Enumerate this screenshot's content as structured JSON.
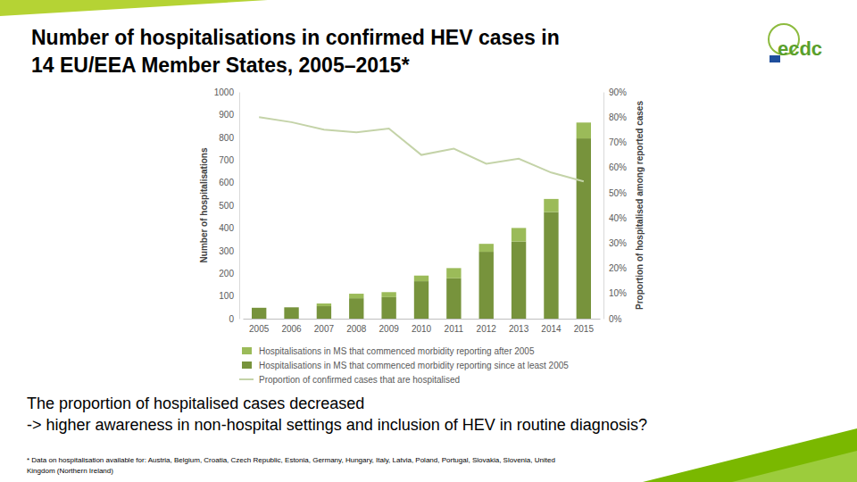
{
  "slide": {
    "title": [
      "Number of hospitalisations in confirmed HEV cases in",
      "14 EU/EEA Member States, 2005–2015*"
    ],
    "note": [
      "The proportion of hospitalised cases decreased",
      "-> higher awareness in non-hospital settings and inclusion of HEV in routine diagnosis?"
    ],
    "footnote": [
      "* Data on hospitalisation available for: Austria, Belgium, Croatia, Czech Republic, Estonia, Germany, Hungary, Italy, Latvia, Poland, Portugal, Slovakia, Slovenia, United",
      "Kingdom (Northern Ireland)"
    ],
    "logo": "ecdc"
  },
  "chart_data": {
    "type": "bar",
    "stacked": true,
    "grid": false,
    "legend": "bottom",
    "y_label": "Number of hospitalisations",
    "y2_label": "Proportion of hospitalised among reported cases",
    "categories": [
      "2005",
      "2006",
      "2007",
      "2008",
      "2009",
      "2010",
      "2011",
      "2012",
      "2013",
      "2014",
      "2015"
    ],
    "ylim": [
      0,
      1000
    ],
    "yticks": [
      0,
      100,
      200,
      300,
      400,
      500,
      600,
      700,
      800,
      900,
      1000
    ],
    "y2lim": [
      0,
      90
    ],
    "y2ticks": [
      {
        "value": 0,
        "label": "0%"
      },
      {
        "value": 10,
        "label": "10%"
      },
      {
        "value": 20,
        "label": "20%"
      },
      {
        "value": 30,
        "label": "30%"
      },
      {
        "value": 40,
        "label": "40%"
      },
      {
        "value": 50,
        "label": "50%"
      },
      {
        "value": 60,
        "label": "60%"
      },
      {
        "value": 70,
        "label": "70%"
      },
      {
        "value": 80,
        "label": "80%"
      },
      {
        "value": 90,
        "label": "90%"
      }
    ],
    "series": [
      {
        "name": "Hospitalisations in MS that commenced morbidity reporting after 2005",
        "type": "bar",
        "color": "#9bbb59",
        "values": [
          0,
          0,
          12,
          20,
          22,
          25,
          45,
          35,
          60,
          58,
          70
        ]
      },
      {
        "name": "Hospitalisations in MS that commenced morbidity reporting since at least 2005",
        "type": "bar",
        "color": "#77933c",
        "values": [
          48,
          50,
          55,
          90,
          95,
          165,
          178,
          295,
          340,
          470,
          795
        ]
      },
      {
        "name": "Proportion of confirmed cases that are hospitalised",
        "type": "line",
        "axis": "y2",
        "color": "#c4d3a8",
        "values": [
          80,
          78,
          75,
          74,
          75.5,
          65,
          67.5,
          61.5,
          63.5,
          58,
          54.5
        ]
      }
    ]
  }
}
